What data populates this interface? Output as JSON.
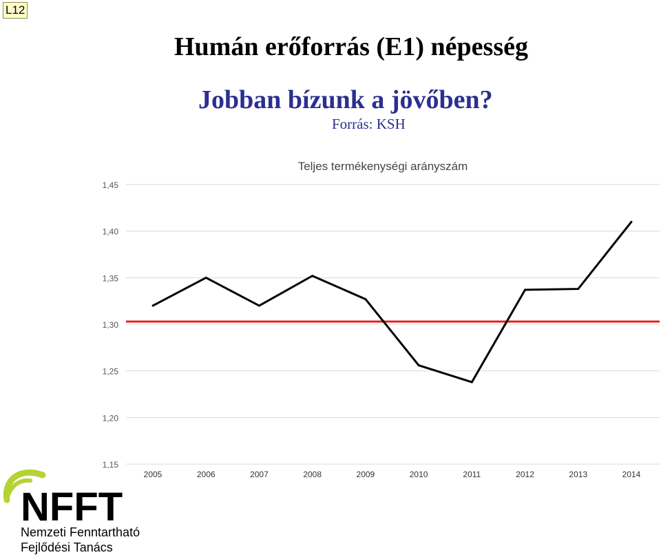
{
  "slide_tag": "L12",
  "header": {
    "title": "Humán erőforrás (E1) népesség",
    "subtitle": "Jobban bízunk a jövőben?",
    "source": "Forrás: KSH"
  },
  "chart_data": {
    "type": "line",
    "title": "Teljes termékenységi arányszám",
    "x": [
      "2005",
      "2006",
      "2007",
      "2008",
      "2009",
      "2010",
      "2011",
      "2012",
      "2013",
      "2014"
    ],
    "series": [
      {
        "values": [
          1.32,
          1.35,
          1.32,
          1.352,
          1.327,
          1.256,
          1.238,
          1.337,
          1.338,
          1.41
        ],
        "color": "#000000"
      }
    ],
    "reference_line": {
      "value": 1.303,
      "color": "#e02020"
    },
    "ylim": [
      1.15,
      1.45
    ],
    "yticks": [
      "1,15",
      "1,20",
      "1,25",
      "1,30",
      "1,35",
      "1,40",
      "1,45"
    ],
    "grid": true
  },
  "logo": {
    "text": "NFFT",
    "name_line1": "Nemzeti Fenntartható",
    "name_line2": "Fejlődési Tanács",
    "accent_color": "#b5d334"
  }
}
